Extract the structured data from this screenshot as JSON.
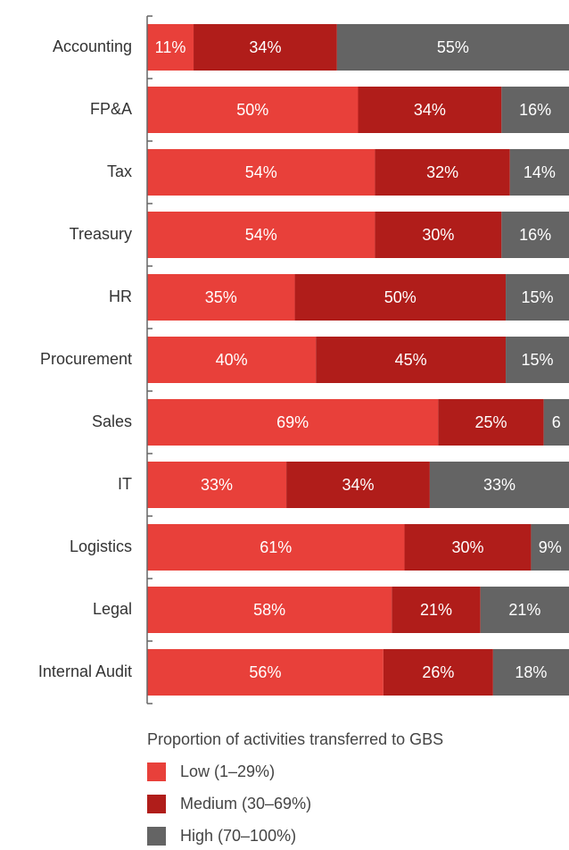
{
  "chart_data": {
    "type": "stacked_bar_horizontal",
    "categories": [
      "Accounting",
      "FP&A",
      "Tax",
      "Treasury",
      "HR",
      "Procurement",
      "Sales",
      "IT",
      "Logistics",
      "Legal",
      "Internal Audit"
    ],
    "series": [
      {
        "name": "Low (1–29%)",
        "color": "#e8403a",
        "values": [
          11,
          50,
          54,
          54,
          35,
          40,
          69,
          33,
          61,
          58,
          56
        ],
        "value_labels": [
          "11%",
          "50%",
          "54%",
          "54%",
          "35%",
          "40%",
          "69%",
          "33%",
          "61%",
          "58%",
          "56%"
        ]
      },
      {
        "name": "Medium (30–69%)",
        "color": "#b01d1a",
        "values": [
          34,
          34,
          32,
          30,
          50,
          45,
          25,
          34,
          30,
          21,
          26
        ],
        "value_labels": [
          "34%",
          "34%",
          "32%",
          "30%",
          "50%",
          "45%",
          "25%",
          "34%",
          "30%",
          "21%",
          "26%"
        ]
      },
      {
        "name": "High (70–100%)",
        "color": "#646464",
        "values": [
          55,
          16,
          14,
          16,
          15,
          15,
          6,
          33,
          9,
          21,
          18
        ],
        "value_labels": [
          "55%",
          "16%",
          "14%",
          "16%",
          "15%",
          "15%",
          "6",
          "33%",
          "9%",
          "21%",
          "18%"
        ]
      }
    ],
    "xlim": [
      0,
      100
    ],
    "legend_title": "Proportion of activities transferred to GBS"
  }
}
